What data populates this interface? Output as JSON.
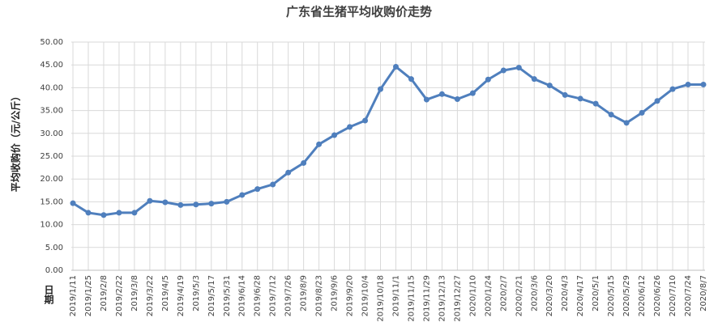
{
  "chart_data": {
    "type": "line",
    "title": "广东省生猪平均收购价走势",
    "y_label": "平均收购价（元/公斤）",
    "x_label": "日期",
    "categories": [
      "2019/1/11",
      "2019/1/25",
      "2019/2/8",
      "2019/2/22",
      "2019/3/8",
      "2019/3/22",
      "2019/4/5",
      "2019/4/19",
      "2019/5/3",
      "2019/5/17",
      "2019/5/31",
      "2019/6/14",
      "2019/6/28",
      "2019/7/12",
      "2019/7/26",
      "2019/8/9",
      "2019/8/23",
      "2019/9/6",
      "2019/9/20",
      "2019/10/4",
      "2019/10/18",
      "2019/11/1",
      "2019/11/15",
      "2019/11/29",
      "2019/12/13",
      "2019/12/27",
      "2020/1/10",
      "2020/1/24",
      "2020/2/7",
      "2020/2/21",
      "2020/3/6",
      "2020/3/20",
      "2020/4/3",
      "2020/4/17",
      "2020/5/1",
      "2020/5/15",
      "2020/5/29",
      "2020/6/12",
      "2020/6/26",
      "2020/7/10",
      "2020/7/24",
      "2020/8/7"
    ],
    "series": [
      {
        "color": "#4f7fbd",
        "values": [
          14.7,
          12.6,
          12.1,
          12.6,
          12.6,
          15.2,
          14.9,
          14.3,
          14.4,
          14.6,
          15.0,
          16.5,
          17.8,
          18.8,
          21.4,
          23.5,
          27.6,
          29.6,
          31.4,
          32.8,
          39.7,
          44.6,
          41.9,
          37.4,
          38.6,
          37.5,
          38.8,
          41.8,
          43.8,
          44.4,
          41.9,
          40.5,
          38.4,
          37.6,
          36.5,
          34.1,
          32.3,
          34.5,
          37.1,
          39.7,
          40.7,
          40.7
        ]
      }
    ],
    "ylim": [
      0,
      50
    ],
    "yticks": [
      {
        "value": 0,
        "label": "0.00"
      },
      {
        "value": 5,
        "label": "5.00"
      },
      {
        "value": 10,
        "label": "10.00"
      },
      {
        "value": 15,
        "label": "15.00"
      },
      {
        "value": 20,
        "label": "20.00"
      },
      {
        "value": 25,
        "label": "25.00"
      },
      {
        "value": 30,
        "label": "30.00"
      },
      {
        "value": 35,
        "label": "35.00"
      },
      {
        "value": 40,
        "label": "40.00"
      },
      {
        "value": 45,
        "label": "45.00"
      },
      {
        "value": 50,
        "label": "50.00"
      }
    ],
    "grid": true
  }
}
